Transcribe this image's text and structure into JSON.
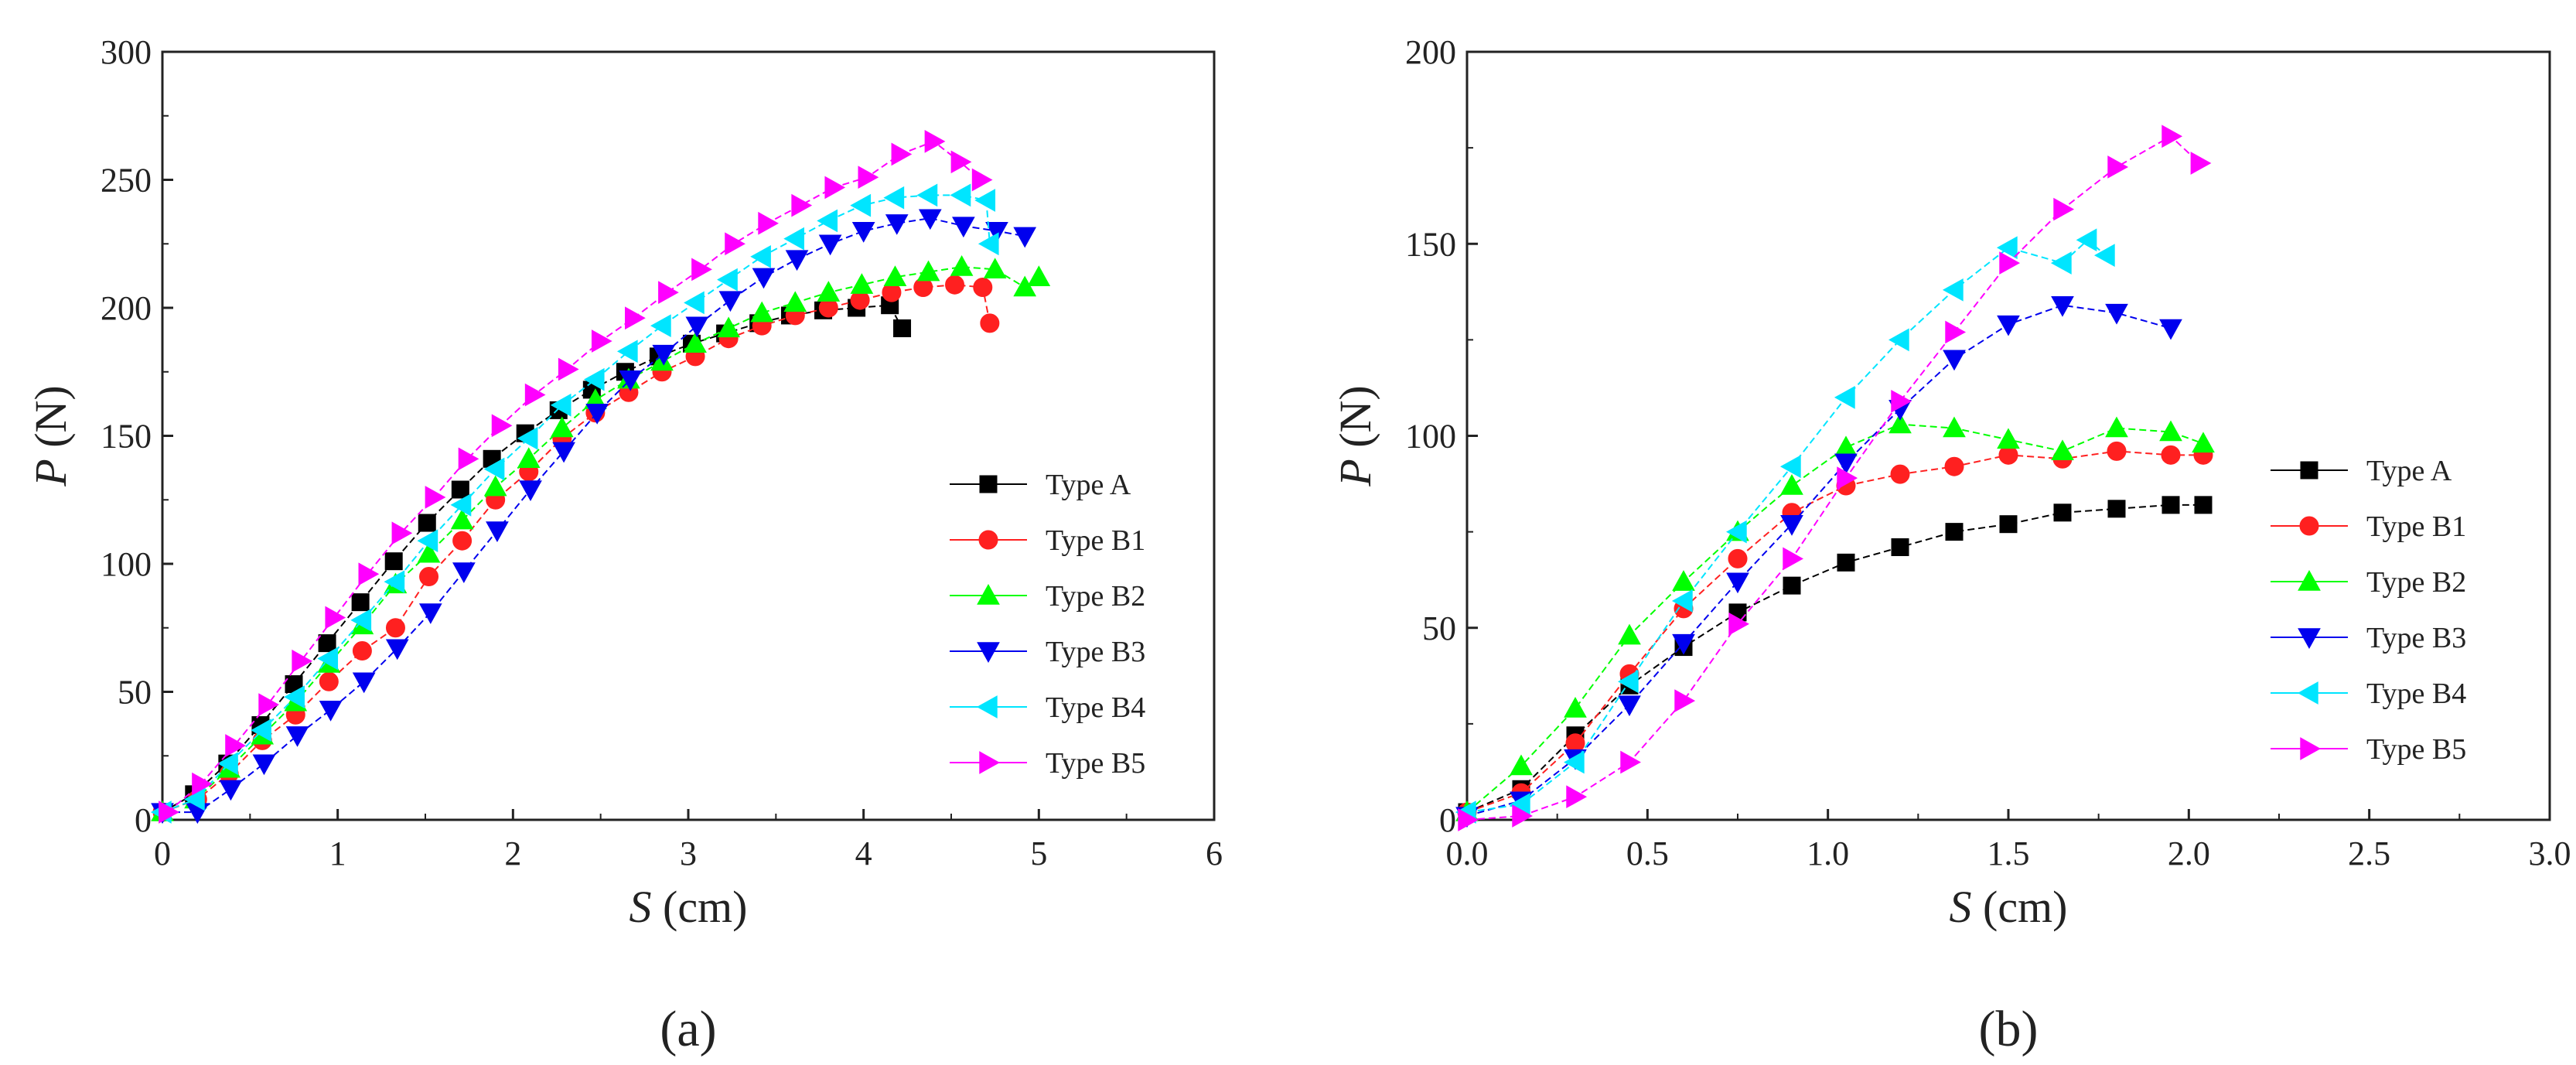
{
  "chart_data": [
    {
      "type": "line",
      "caption": "(a)",
      "xlabel": {
        "var": "S",
        "unit": " (cm)"
      },
      "ylabel": {
        "var": "P",
        "unit": " (N)"
      },
      "xlim": [
        0,
        6
      ],
      "ylim": [
        0,
        300
      ],
      "xticks": [
        0,
        1,
        2,
        3,
        4,
        5,
        6
      ],
      "yticks": [
        0,
        50,
        100,
        150,
        200,
        250,
        300
      ],
      "xtick_labels": [
        "0",
        "1",
        "2",
        "3",
        "4",
        "5",
        "6"
      ],
      "ytick_labels": [
        "0",
        "50",
        "100",
        "150",
        "200",
        "250",
        "300"
      ],
      "grid": false,
      "legend": "right",
      "series": [
        {
          "name": "Type A",
          "marker": "square",
          "color": "#000000",
          "x": [
            0,
            0.18,
            0.37,
            0.56,
            0.75,
            0.94,
            1.13,
            1.32,
            1.51,
            1.7,
            1.88,
            2.07,
            2.26,
            2.45,
            2.64,
            2.83,
            3.02,
            3.21,
            3.4,
            3.58,
            3.77,
            3.96,
            4.15,
            4.22
          ],
          "y": [
            3,
            10,
            22,
            37,
            53,
            69,
            85,
            101,
            116,
            129,
            141,
            151,
            160,
            168,
            175,
            181,
            186,
            190,
            194,
            197,
            199,
            200,
            201,
            192
          ]
        },
        {
          "name": "Type B1",
          "marker": "circle",
          "color": "#ff2020",
          "x": [
            0,
            0.2,
            0.38,
            0.57,
            0.76,
            0.95,
            1.14,
            1.33,
            1.52,
            1.71,
            1.9,
            2.09,
            2.28,
            2.47,
            2.66,
            2.85,
            3.04,
            3.23,
            3.42,
            3.61,
            3.8,
            3.98,
            4.16,
            4.34,
            4.52,
            4.68,
            4.72
          ],
          "y": [
            3,
            8,
            18,
            31,
            41,
            54,
            66,
            75,
            95,
            109,
            125,
            136,
            149,
            159,
            167,
            175,
            181,
            188,
            193,
            197,
            200,
            203,
            206,
            208,
            209,
            208,
            194
          ]
        },
        {
          "name": "Type B2",
          "marker": "triangle-up",
          "color": "#00ff00",
          "x": [
            0,
            0.19,
            0.38,
            0.57,
            0.76,
            0.95,
            1.14,
            1.33,
            1.52,
            1.71,
            1.9,
            2.09,
            2.28,
            2.47,
            2.66,
            2.85,
            3.04,
            3.23,
            3.42,
            3.61,
            3.8,
            3.99,
            4.18,
            4.37,
            4.56,
            4.75,
            4.92,
            5.0
          ],
          "y": [
            3,
            8,
            20,
            33,
            46,
            61,
            76,
            92,
            104,
            117,
            130,
            141,
            153,
            164,
            172,
            179,
            186,
            192,
            198,
            202,
            206,
            209,
            212,
            214,
            216,
            215,
            208,
            212
          ]
        },
        {
          "name": "Type B3",
          "marker": "triangle-down",
          "color": "#0000ee",
          "x": [
            0,
            0.2,
            0.39,
            0.58,
            0.77,
            0.96,
            1.15,
            1.34,
            1.53,
            1.72,
            1.91,
            2.1,
            2.29,
            2.48,
            2.67,
            2.86,
            3.05,
            3.24,
            3.43,
            3.62,
            3.81,
            4.0,
            4.19,
            4.38,
            4.57,
            4.76,
            4.92
          ],
          "y": [
            3,
            3,
            12,
            22,
            33,
            43,
            54,
            67,
            81,
            97,
            113,
            129,
            144,
            159,
            172,
            182,
            193,
            203,
            212,
            219,
            225,
            230,
            233,
            235,
            232,
            230,
            228
          ]
        },
        {
          "name": "Type B4",
          "marker": "triangle-left",
          "color": "#00e5ff",
          "x": [
            0,
            0.19,
            0.38,
            0.57,
            0.76,
            0.95,
            1.14,
            1.33,
            1.52,
            1.71,
            1.9,
            2.09,
            2.28,
            2.47,
            2.66,
            2.85,
            3.04,
            3.23,
            3.42,
            3.61,
            3.8,
            3.99,
            4.18,
            4.37,
            4.56,
            4.7,
            4.72
          ],
          "y": [
            3,
            8,
            22,
            35,
            48,
            63,
            78,
            93,
            109,
            123,
            137,
            149,
            162,
            172,
            183,
            193,
            202,
            211,
            220,
            227,
            234,
            240,
            243,
            244,
            244,
            242,
            225
          ]
        },
        {
          "name": "Type B5",
          "marker": "triangle-right",
          "color": "#ff00ff",
          "x": [
            0.03,
            0.22,
            0.41,
            0.6,
            0.79,
            0.98,
            1.17,
            1.36,
            1.55,
            1.74,
            1.93,
            2.12,
            2.31,
            2.5,
            2.69,
            2.88,
            3.07,
            3.26,
            3.45,
            3.64,
            3.83,
            4.02,
            4.21,
            4.4,
            4.55,
            4.67
          ],
          "y": [
            3,
            14,
            29,
            45,
            62,
            79,
            96,
            112,
            126,
            141,
            154,
            166,
            176,
            187,
            196,
            206,
            215,
            225,
            233,
            240,
            247,
            251,
            260,
            265,
            257,
            250
          ]
        }
      ]
    },
    {
      "type": "line",
      "caption": "(b)",
      "xlabel": {
        "var": "S",
        "unit": " (cm)"
      },
      "ylabel": {
        "var": "P",
        "unit": " (N)"
      },
      "xlim": [
        0,
        3
      ],
      "ylim": [
        0,
        200
      ],
      "xticks": [
        0,
        0.5,
        1,
        1.5,
        2,
        2.5,
        3
      ],
      "yticks": [
        0,
        50,
        100,
        150,
        200
      ],
      "xtick_labels": [
        "0.0",
        "0.5",
        "1.0",
        "1.5",
        "2.0",
        "2.5",
        "3.0"
      ],
      "ytick_labels": [
        "0",
        "50",
        "100",
        "150",
        "200"
      ],
      "grid": false,
      "legend": "right",
      "series": [
        {
          "name": "Type A",
          "marker": "square",
          "color": "#000000",
          "x": [
            0,
            0.15,
            0.3,
            0.45,
            0.6,
            0.75,
            0.9,
            1.05,
            1.2,
            1.35,
            1.5,
            1.65,
            1.8,
            1.95,
            2.04
          ],
          "y": [
            2,
            8,
            22,
            35,
            45,
            54,
            61,
            67,
            71,
            75,
            77,
            80,
            81,
            82,
            82
          ]
        },
        {
          "name": "Type B1",
          "marker": "circle",
          "color": "#ff2020",
          "x": [
            0,
            0.15,
            0.3,
            0.45,
            0.6,
            0.75,
            0.9,
            1.05,
            1.2,
            1.35,
            1.5,
            1.65,
            1.8,
            1.95,
            2.04
          ],
          "y": [
            2,
            7,
            20,
            38,
            55,
            68,
            80,
            87,
            90,
            92,
            95,
            94,
            96,
            95,
            95
          ]
        },
        {
          "name": "Type B2",
          "marker": "triangle-up",
          "color": "#00ff00",
          "x": [
            0,
            0.15,
            0.3,
            0.45,
            0.6,
            0.75,
            0.9,
            1.05,
            1.2,
            1.35,
            1.5,
            1.65,
            1.8,
            1.95,
            2.04
          ],
          "y": [
            2,
            14,
            29,
            48,
            62,
            75,
            87,
            97,
            103,
            102,
            99,
            96,
            102,
            101,
            98
          ]
        },
        {
          "name": "Type B3",
          "marker": "triangle-down",
          "color": "#0000ee",
          "x": [
            0,
            0.15,
            0.3,
            0.45,
            0.6,
            0.75,
            0.9,
            1.05,
            1.2,
            1.35,
            1.5,
            1.65,
            1.8,
            1.95
          ],
          "y": [
            1,
            5,
            16,
            30,
            46,
            62,
            77,
            93,
            107,
            120,
            129,
            134,
            132,
            128
          ]
        },
        {
          "name": "Type B4",
          "marker": "triangle-left",
          "color": "#00e5ff",
          "x": [
            0,
            0.15,
            0.3,
            0.45,
            0.6,
            0.75,
            0.9,
            1.05,
            1.2,
            1.35,
            1.5,
            1.65,
            1.72,
            1.77
          ],
          "y": [
            2,
            4,
            15,
            36,
            57,
            75,
            92,
            110,
            125,
            138,
            149,
            145,
            151,
            147
          ]
        },
        {
          "name": "Type B5",
          "marker": "triangle-right",
          "color": "#ff00ff",
          "x": [
            0,
            0.15,
            0.3,
            0.45,
            0.6,
            0.75,
            0.9,
            1.05,
            1.2,
            1.35,
            1.5,
            1.65,
            1.8,
            1.95,
            2.03
          ],
          "y": [
            0,
            1,
            6,
            15,
            31,
            51,
            68,
            89,
            109,
            127,
            145,
            159,
            170,
            178,
            171
          ]
        }
      ]
    }
  ]
}
